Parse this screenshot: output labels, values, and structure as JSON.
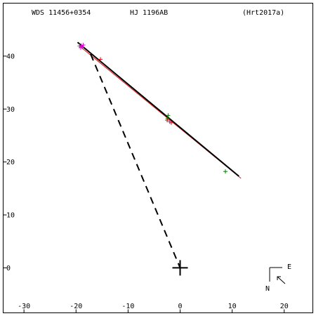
{
  "header": {
    "wds_id": "WDS 11456+0354",
    "discoverer": "HJ 1196AB",
    "reference": "(Hrt2017a)"
  },
  "compass": {
    "east_label": "E",
    "north_label": "N"
  },
  "colors": {
    "frame": "#000000",
    "orbit": "#000000",
    "orbit_alt": "#e01010",
    "obs_green": "#008000",
    "obs_red": "#e01010",
    "obs_magenta": "#e000e0",
    "primary": "#000000"
  },
  "chart_data": {
    "type": "scatter",
    "xlim": [
      -34,
      25.5
    ],
    "ylim": [
      -8.5,
      50
    ],
    "x_ticks": [
      -30,
      -20,
      -10,
      0,
      10,
      20
    ],
    "y_ticks": [
      0,
      10,
      20,
      30,
      40
    ],
    "x_tick_labels": [
      "-30",
      "-20",
      "-10",
      "0",
      "10",
      "20"
    ],
    "y_tick_labels": [
      "0",
      "10",
      "20",
      "30",
      "40"
    ],
    "grid": false,
    "primary_star": {
      "x": 0,
      "y": 0
    },
    "orbit_line": [
      [
        -19.7,
        42.6
      ],
      [
        11.3,
        17.3
      ]
    ],
    "orbit_line_alt": [
      [
        -19.2,
        41.8
      ],
      [
        11.7,
        16.9
      ]
    ],
    "periastron_line": [
      [
        -17.2,
        40.4
      ],
      [
        0,
        0
      ]
    ],
    "observations_green": [
      [
        -2.3,
        28.8
      ],
      [
        -2.4,
        28.2
      ],
      [
        8.7,
        18.2
      ]
    ],
    "observations_red": [
      [
        -15.3,
        39.4
      ],
      [
        -2.5,
        27.9
      ],
      [
        -1.7,
        27.4
      ]
    ],
    "observations_magenta": [
      [
        -19.0,
        42.0
      ],
      [
        -18.8,
        41.7
      ],
      [
        -19.3,
        41.9
      ],
      [
        -18.6,
        42.1
      ],
      [
        -19.1,
        41.6
      ],
      [
        -2.0,
        27.6
      ]
    ]
  }
}
